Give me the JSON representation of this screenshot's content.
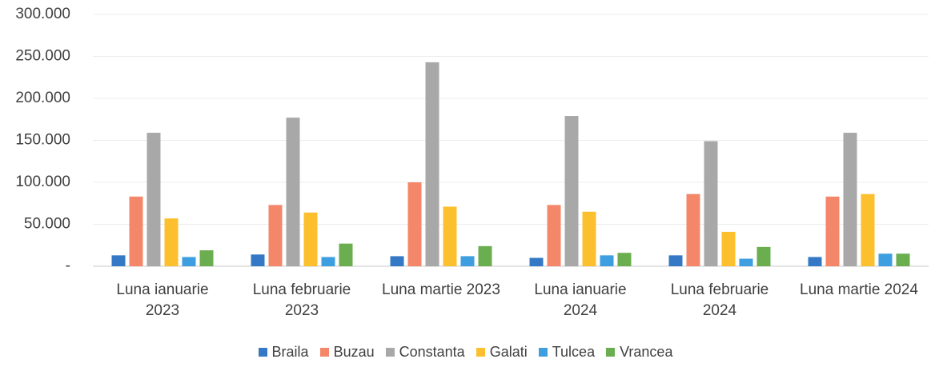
{
  "chart_data": {
    "type": "bar",
    "categories": [
      "Luna ianuarie 2023",
      "Luna februarie 2023",
      "Luna martie 2023",
      "Luna ianuarie 2024",
      "Luna februarie 2024",
      "Luna martie 2024"
    ],
    "series": [
      {
        "name": "Braila",
        "color": "#3478c6",
        "values": [
          13000,
          14000,
          12000,
          10000,
          13000,
          11000
        ]
      },
      {
        "name": "Buzau",
        "color": "#f4876a",
        "values": [
          83000,
          73000,
          100000,
          73000,
          86000,
          83000
        ]
      },
      {
        "name": "Constanta",
        "color": "#a8a8a8",
        "values": [
          159000,
          177000,
          243000,
          179000,
          149000,
          159000
        ]
      },
      {
        "name": "Galati",
        "color": "#fcc02e",
        "values": [
          57000,
          64000,
          71000,
          65000,
          41000,
          86000
        ]
      },
      {
        "name": "Tulcea",
        "color": "#3d9ee0",
        "values": [
          11000,
          11000,
          12000,
          13000,
          9000,
          15000
        ]
      },
      {
        "name": "Vrancea",
        "color": "#6aae4f",
        "values": [
          19000,
          27000,
          24000,
          16000,
          23000,
          15000
        ]
      }
    ],
    "ylim": [
      0,
      300000
    ],
    "yticks": [
      {
        "value": 0,
        "label": "-"
      },
      {
        "value": 50000,
        "label": "50.000"
      },
      {
        "value": 100000,
        "label": "100.000"
      },
      {
        "value": 150000,
        "label": "150.000"
      },
      {
        "value": 200000,
        "label": "200.000"
      },
      {
        "value": 250000,
        "label": "250.000"
      },
      {
        "value": 300000,
        "label": "300.000"
      }
    ],
    "grid": true,
    "legend": "bottom"
  }
}
